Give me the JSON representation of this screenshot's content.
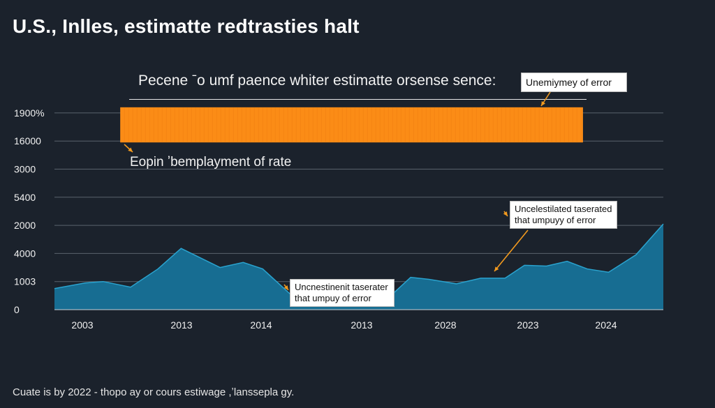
{
  "title": "U.S., Inlles, estimatte redtrasties halt",
  "subtitle": "Pecene ˉo umf paence whiter estimatte orsense sence:",
  "footer": "Cuate is by 2022 - thopo ay or cours estiwage ,ʼlanssepla gy.",
  "colors": {
    "background": "#1b222c",
    "area_fill": "#176d92",
    "area_line": "#2aa3cf",
    "band": "#fb8c16",
    "arrow": "#f29a1f",
    "grid": "#5a626c"
  },
  "chart_data": {
    "type": "area",
    "title": "U.S., Inlles, estimatte redtrasties halt",
    "subtitle": "Pecene ˉo umf paence whiter estimatte orsense sence:",
    "y_tick_labels": [
      "0",
      "1003",
      "4000",
      "2000",
      "5400",
      "3000",
      "16000",
      "1900%"
    ],
    "x_tick_labels": [
      "2003",
      "2013",
      "2014",
      "2013",
      "2028",
      "2023",
      "2024"
    ],
    "grid": true,
    "series": [
      {
        "points": [
          [
            0,
            0.75
          ],
          [
            0.05,
            0.95
          ],
          [
            0.08,
            1.0
          ],
          [
            0.125,
            0.8
          ],
          [
            0.17,
            1.45
          ],
          [
            0.208,
            2.18
          ],
          [
            0.272,
            1.5
          ],
          [
            0.31,
            1.68
          ],
          [
            0.342,
            1.45
          ],
          [
            0.395,
            0.4
          ],
          [
            0.45,
            0.48
          ],
          [
            0.5,
            0.35
          ],
          [
            0.555,
            0.55
          ],
          [
            0.585,
            1.15
          ],
          [
            0.615,
            1.08
          ],
          [
            0.66,
            0.92
          ],
          [
            0.7,
            1.12
          ],
          [
            0.74,
            1.12
          ],
          [
            0.772,
            1.58
          ],
          [
            0.808,
            1.55
          ],
          [
            0.842,
            1.72
          ],
          [
            0.875,
            1.45
          ],
          [
            0.91,
            1.33
          ],
          [
            0.955,
            1.95
          ],
          [
            1.0,
            3.05
          ]
        ]
      }
    ],
    "band": {
      "label": "Eopin ʼbemplayment of rate",
      "x_range": [
        0.108,
        0.868
      ],
      "y_range": [
        5.95,
        7.2
      ]
    },
    "annotations": [
      {
        "text": "Unemiymey of error"
      },
      {
        "text": [
          "Uncelestilated taserated",
          "that umpuyy of error"
        ]
      },
      {
        "text": [
          "Uncnestinenit taserater",
          "that umpuy of error"
        ]
      }
    ]
  }
}
